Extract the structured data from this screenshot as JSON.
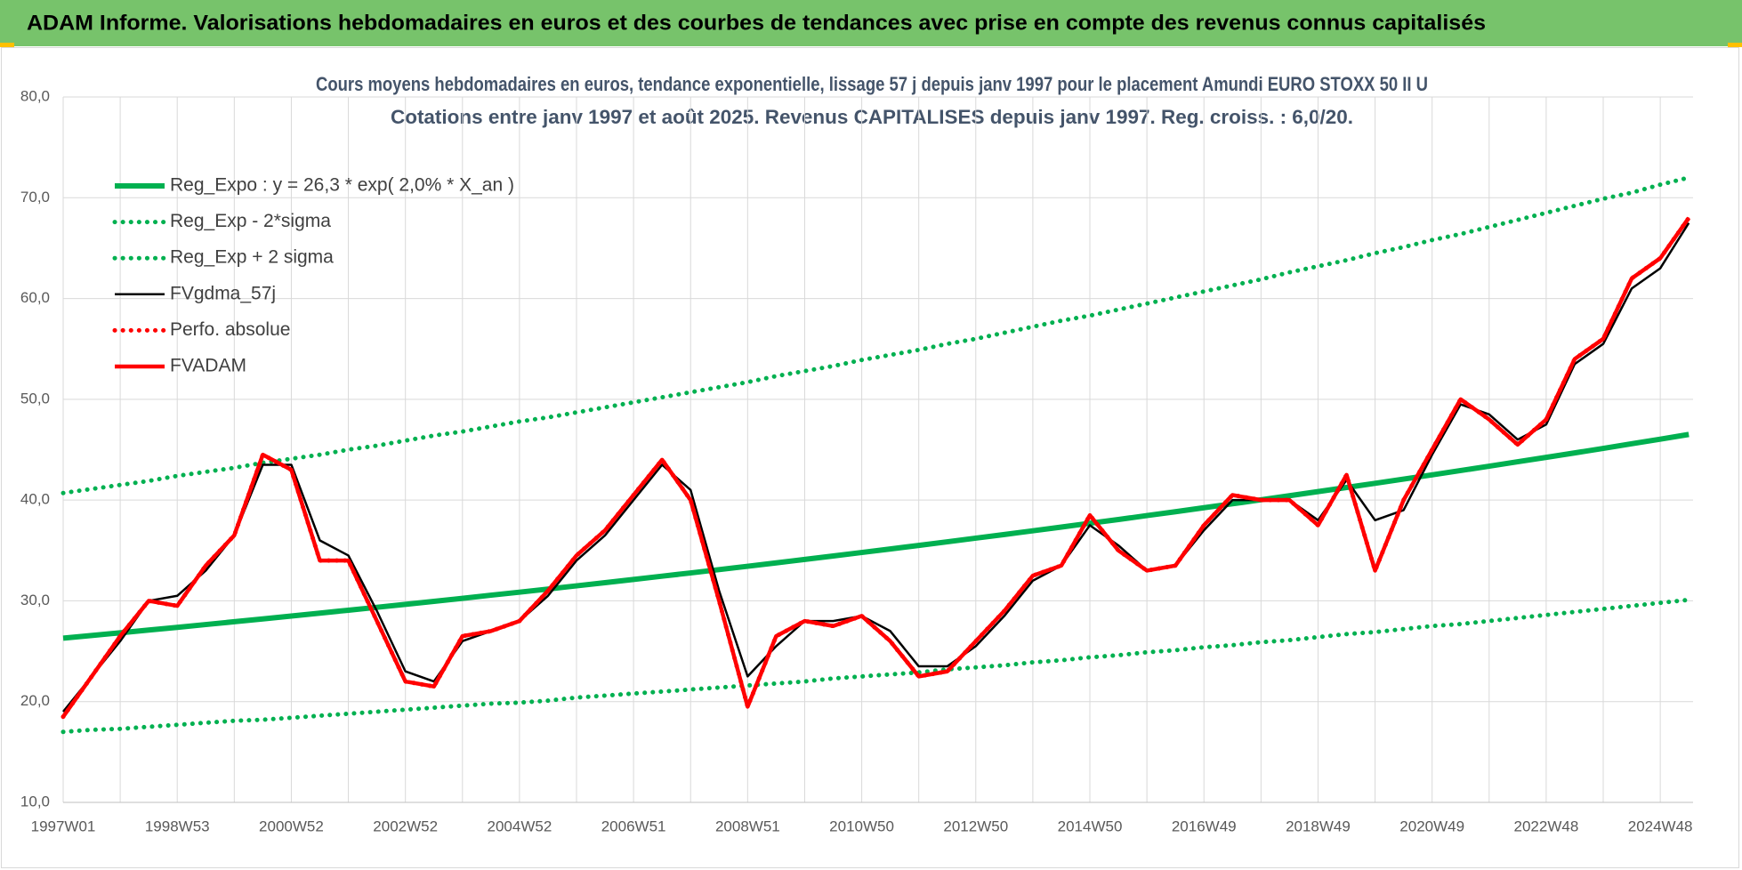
{
  "header": {
    "title": "ADAM Informe. Valorisations hebdomadaires en euros et des courbes de tendances avec prise en compte des revenus connus capitalisés"
  },
  "chart_data": {
    "type": "line",
    "title": "Cours moyens hebdomadaires en euros, tendance exponentielle, lissage 57 j depuis janv 1997  pour le placement Amundi EURO STOXX 50 II U",
    "subtitle": "Cotations entre janv 1997 et août 2025. Revenus CAPITALISES depuis janv 1997. Reg. croiss. : 6,0/20.",
    "categories": [
      "1997W01",
      null,
      null,
      null,
      "1998W53",
      null,
      null,
      null,
      "2000W52",
      null,
      null,
      null,
      "2002W52",
      null,
      null,
      null,
      "2004W52",
      null,
      null,
      null,
      "2006W51",
      null,
      null,
      null,
      "2008W51",
      null,
      null,
      null,
      "2010W50",
      null,
      null,
      null,
      "2012W50",
      null,
      null,
      null,
      "2014W50",
      null,
      null,
      null,
      "2016W49",
      null,
      null,
      null,
      "2018W49",
      null,
      null,
      null,
      "2020W49",
      null,
      null,
      null,
      "2022W48",
      null,
      null,
      null,
      "2024W48",
      null
    ],
    "ylim": [
      10,
      80
    ],
    "yticks": [
      {
        "value": 10,
        "label": "10,0"
      },
      {
        "value": 20,
        "label": "20,0"
      },
      {
        "value": 30,
        "label": "30,0"
      },
      {
        "value": 40,
        "label": "40,0"
      },
      {
        "value": 50,
        "label": "50,0"
      },
      {
        "value": 60,
        "label": "60,0"
      },
      {
        "value": 70,
        "label": "70,0"
      },
      {
        "value": 80,
        "label": "80,0"
      }
    ],
    "grid": true,
    "legend": "top-left",
    "series": [
      {
        "name": "Reg_Expo : y = 26,3 * exp( 2,0% *  X_an )",
        "color": "#00b050",
        "line_style": "solid",
        "values": [
          26.3,
          26.56,
          26.83,
          27.1,
          27.37,
          27.65,
          27.93,
          28.21,
          28.49,
          28.78,
          29.07,
          29.36,
          29.65,
          29.95,
          30.25,
          30.56,
          30.86,
          31.17,
          31.49,
          31.8,
          32.12,
          32.45,
          32.77,
          33.1,
          33.43,
          33.77,
          34.11,
          34.45,
          34.8,
          35.15,
          35.5,
          35.86,
          36.22,
          36.58,
          36.95,
          37.32,
          37.7,
          38.07,
          38.46,
          38.84,
          39.24,
          39.63,
          40.03,
          40.43,
          40.84,
          41.25,
          41.66,
          42.08,
          42.5,
          42.93,
          43.36,
          43.8,
          44.24,
          44.68,
          45.13,
          45.59,
          46.04,
          46.51
        ]
      },
      {
        "name": "Reg_Exp - 2*sigma",
        "color": "#00b050",
        "line_style": "dotted",
        "values": [
          17.0,
          17.2,
          17.3,
          17.5,
          17.7,
          17.9,
          18.1,
          18.2,
          18.4,
          18.6,
          18.8,
          19.0,
          19.2,
          19.4,
          19.6,
          19.8,
          19.9,
          20.1,
          20.4,
          20.6,
          20.8,
          21.0,
          21.2,
          21.4,
          21.6,
          21.8,
          22.0,
          22.3,
          22.5,
          22.7,
          22.9,
          23.2,
          23.4,
          23.6,
          23.9,
          24.1,
          24.4,
          24.6,
          24.9,
          25.1,
          25.4,
          25.6,
          25.9,
          26.1,
          26.4,
          26.7,
          26.9,
          27.2,
          27.5,
          27.7,
          28.0,
          28.3,
          28.6,
          28.9,
          29.2,
          29.5,
          29.8,
          30.1
        ]
      },
      {
        "name": "Reg_Exp + 2 sigma",
        "color": "#00b050",
        "line_style": "dotted",
        "values": [
          40.7,
          41.1,
          41.5,
          41.9,
          42.4,
          42.8,
          43.2,
          43.7,
          44.1,
          44.5,
          45.0,
          45.4,
          45.9,
          46.4,
          46.8,
          47.3,
          47.8,
          48.2,
          48.7,
          49.2,
          49.7,
          50.2,
          50.7,
          51.2,
          51.7,
          52.3,
          52.8,
          53.3,
          53.9,
          54.4,
          54.9,
          55.5,
          56.0,
          56.6,
          57.2,
          57.8,
          58.3,
          58.9,
          59.5,
          60.1,
          60.7,
          61.3,
          61.9,
          62.6,
          63.2,
          63.8,
          64.5,
          65.1,
          65.8,
          66.4,
          67.1,
          67.8,
          68.5,
          69.2,
          69.9,
          70.5,
          71.3,
          72.0
        ]
      },
      {
        "name": "FVgdma_57j",
        "color": "#000000",
        "line_style": "solid",
        "values": [
          19.0,
          22.5,
          26.0,
          30.0,
          30.5,
          33.0,
          36.5,
          43.5,
          43.5,
          36.0,
          34.5,
          29.0,
          23.0,
          22.0,
          26.0,
          27.0,
          28.0,
          30.5,
          34.0,
          36.5,
          40.0,
          43.5,
          41.0,
          31.0,
          22.5,
          25.5,
          28.0,
          28.0,
          28.5,
          27.0,
          23.5,
          23.5,
          25.5,
          28.5,
          32.0,
          33.5,
          37.5,
          35.5,
          33.0,
          33.5,
          37.0,
          40.0,
          40.0,
          40.0,
          38.0,
          42.0,
          38.0,
          39.0,
          44.5,
          49.5,
          48.5,
          46.0,
          47.5,
          53.5,
          55.5,
          61.0,
          63.0,
          67.5
        ]
      },
      {
        "name": "Perfo. absolue",
        "color": "#ff0000",
        "line_style": "dotted",
        "values": [
          18.5,
          22.5,
          26.5,
          30.0,
          29.5,
          33.5,
          36.5,
          44.5,
          43.0,
          34.0,
          34.0,
          28.0,
          22.0,
          21.5,
          26.5,
          27.0,
          28.0,
          31.0,
          34.5,
          37.0,
          40.5,
          44.0,
          40.0,
          30.0,
          19.5,
          26.5,
          28.0,
          27.5,
          28.5,
          26.0,
          22.5,
          23.0,
          26.0,
          29.0,
          32.5,
          33.5,
          38.5,
          35.0,
          33.0,
          33.5,
          37.5,
          40.5,
          40.0,
          40.0,
          37.5,
          42.5,
          33.0,
          40.0,
          45.0,
          50.0,
          48.0,
          45.5,
          48.0,
          54.0,
          56.0,
          62.0,
          64.0,
          68.0
        ]
      },
      {
        "name": "FVADAM",
        "color": "#ff0000",
        "line_style": "solid",
        "values": [
          18.5,
          22.5,
          26.5,
          30.0,
          29.5,
          33.5,
          36.5,
          44.5,
          43.0,
          34.0,
          34.0,
          28.0,
          22.0,
          21.5,
          26.5,
          27.0,
          28.0,
          31.0,
          34.5,
          37.0,
          40.5,
          44.0,
          40.0,
          30.0,
          19.5,
          26.5,
          28.0,
          27.5,
          28.5,
          26.0,
          22.5,
          23.0,
          26.0,
          29.0,
          32.5,
          33.5,
          38.5,
          35.0,
          33.0,
          33.5,
          37.5,
          40.5,
          40.0,
          40.0,
          37.5,
          42.5,
          33.0,
          40.0,
          45.0,
          50.0,
          48.0,
          45.5,
          48.0,
          54.0,
          56.0,
          62.0,
          64.0,
          68.0
        ]
      }
    ]
  }
}
